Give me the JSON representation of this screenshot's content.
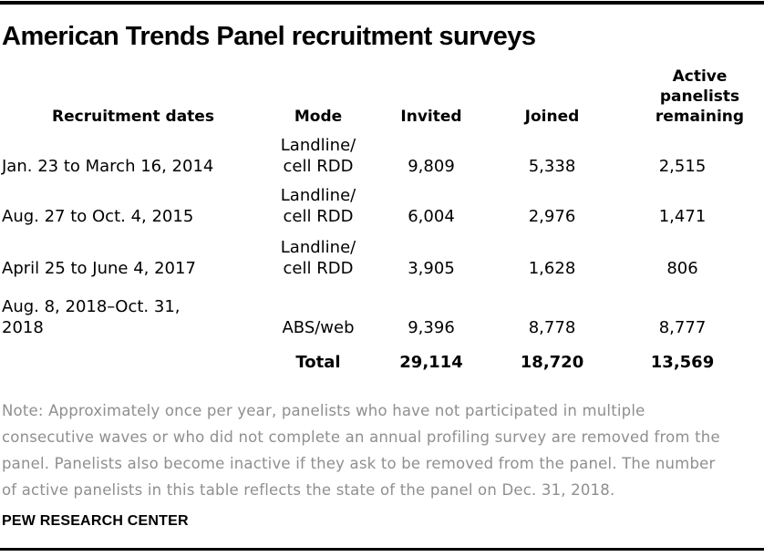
{
  "chart_data": {
    "type": "table",
    "title": "American Trends Panel recruitment surveys",
    "columns": [
      "Recruitment dates",
      "Mode",
      "Invited",
      "Joined",
      "Active\npanelists\nremaining"
    ],
    "rows": [
      {
        "dates": "Jan. 23 to March 16, 2014",
        "mode": "Landline/\ncell RDD",
        "invited": "9,809",
        "joined": "5,338",
        "active_remaining": "2,515"
      },
      {
        "dates": "Aug. 27 to Oct. 4, 2015",
        "mode": "Landline/\ncell RDD",
        "invited": "6,004",
        "joined": "2,976",
        "active_remaining": "1,471"
      },
      {
        "dates": "April 25 to June 4, 2017",
        "mode": "Landline/\ncell RDD",
        "invited": "3,905",
        "joined": "1,628",
        "active_remaining": "806"
      },
      {
        "dates": "Aug. 8, 2018–Oct. 31,\n2018",
        "mode": "ABS/web",
        "invited": "9,396",
        "joined": "8,778",
        "active_remaining": "8,777"
      }
    ],
    "total_row": {
      "label": "Total",
      "invited": "29,114",
      "joined": "18,720",
      "active_remaining": "13,569"
    }
  },
  "note": "Note: Approximately once per year, panelists who have not participated in multiple\nconsecutive waves or who did not complete an annual profiling survey are removed from the\npanel. Panelists also become inactive if they ask to be removed from the panel. The number\nof active panelists in this table reflects the state of the panel on Dec. 31, 2018.",
  "source": "PEW RESEARCH CENTER",
  "colors": {
    "rule": "#000000",
    "text": "#000000",
    "note_gray": "#8f8f8f"
  }
}
